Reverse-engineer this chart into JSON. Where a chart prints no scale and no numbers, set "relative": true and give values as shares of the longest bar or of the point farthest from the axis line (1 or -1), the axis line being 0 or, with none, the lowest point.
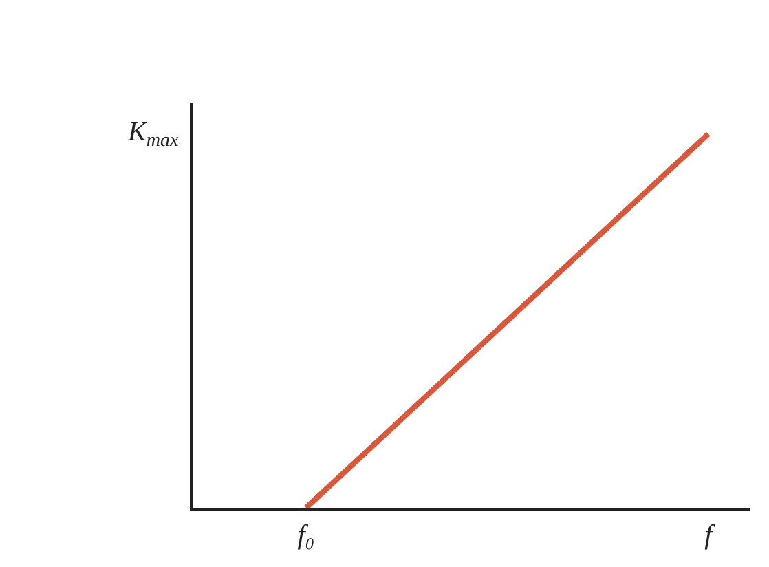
{
  "chart_data": {
    "type": "line",
    "relative": true,
    "ylabel": "K$_{max}$",
    "categories": [
      "f₀",
      "f"
    ],
    "series": [
      {
        "color": "#d9573a",
        "values": [
          0,
          1
        ]
      }
    ],
    "marker": "none",
    "line_style": "solid"
  }
}
